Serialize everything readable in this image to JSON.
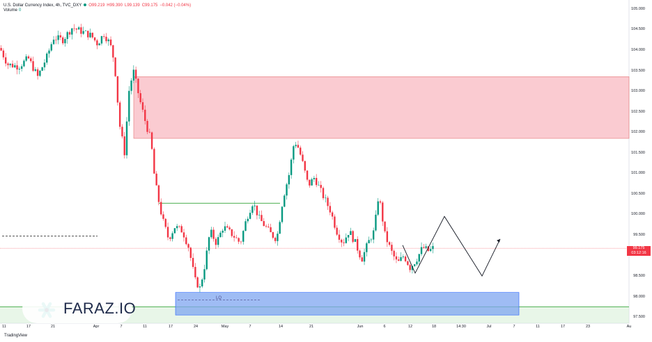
{
  "header": {
    "symbol": "U.S. Dollar Currency Index, 4h, TVC_DXY",
    "open": "O99.219",
    "high": "H99.390",
    "low": "L99.139",
    "close": "C99.175",
    "change": "−0.042 (−0.04%)",
    "volume_label": "Volume",
    "volume_value": "0"
  },
  "price_tag": {
    "price": "99.175",
    "timer": "03:12:16"
  },
  "watermark": {
    "brand": "FARAZ.IO"
  },
  "footer": {
    "tradingview": "TradingView"
  },
  "annotations": {
    "lq": "LQ"
  },
  "colors": {
    "up": "#089981",
    "down": "#f23645",
    "supply_zone": "#f7a8b3",
    "demand_zone": "#7fa6f0",
    "green_band": "#d6efd6"
  },
  "chart_data": {
    "type": "candlestick",
    "title": "U.S. Dollar Currency Index, 4h, TVC_DXY",
    "ylim": [
      97.35,
      105.15
    ],
    "y_ticks": [
      "105.000",
      "104.500",
      "104.000",
      "103.500",
      "103.000",
      "102.500",
      "102.000",
      "101.500",
      "101.000",
      "100.500",
      "100.000",
      "99.500",
      "99.000",
      "98.500",
      "98.000",
      "97.500"
    ],
    "x_ticks": [
      "11",
      "17",
      "21",
      "Apr",
      "7",
      "11",
      "17",
      "24",
      "May",
      "7",
      "14",
      "21",
      "Jun",
      "6",
      "12",
      "18",
      "14:30",
      "Jul",
      "7",
      "11",
      "17",
      "23",
      "Au"
    ],
    "grid": false,
    "close_path": [
      [
        0,
        104.05
      ],
      [
        0.012,
        103.65
      ],
      [
        0.03,
        103.6
      ],
      [
        0.045,
        103.8
      ],
      [
        0.06,
        103.35
      ],
      [
        0.075,
        103.85
      ],
      [
        0.085,
        104.3
      ],
      [
        0.1,
        104.25
      ],
      [
        0.115,
        104.55
      ],
      [
        0.13,
        104.45
      ],
      [
        0.145,
        104.35
      ],
      [
        0.155,
        104.15
      ],
      [
        0.165,
        104.4
      ],
      [
        0.175,
        104.15
      ],
      [
        0.182,
        103.7
      ],
      [
        0.19,
        102.2
      ],
      [
        0.198,
        101.5
      ],
      [
        0.205,
        103.0
      ],
      [
        0.212,
        103.5
      ],
      [
        0.222,
        102.8
      ],
      [
        0.232,
        102.2
      ],
      [
        0.24,
        101.8
      ],
      [
        0.245,
        101.0
      ],
      [
        0.25,
        100.5
      ],
      [
        0.258,
        99.9
      ],
      [
        0.268,
        99.4
      ],
      [
        0.278,
        99.7
      ],
      [
        0.29,
        99.6
      ],
      [
        0.3,
        99.2
      ],
      [
        0.31,
        98.4
      ],
      [
        0.318,
        98.2
      ],
      [
        0.326,
        98.8
      ],
      [
        0.334,
        99.6
      ],
      [
        0.344,
        99.3
      ],
      [
        0.355,
        99.7
      ],
      [
        0.37,
        99.5
      ],
      [
        0.382,
        99.3
      ],
      [
        0.392,
        99.9
      ],
      [
        0.402,
        100.3
      ],
      [
        0.412,
        99.9
      ],
      [
        0.422,
        99.7
      ],
      [
        0.432,
        99.5
      ],
      [
        0.44,
        99.4
      ],
      [
        0.45,
        100.4
      ],
      [
        0.46,
        101.0
      ],
      [
        0.468,
        101.8
      ],
      [
        0.475,
        101.6
      ],
      [
        0.482,
        101.2
      ],
      [
        0.49,
        100.7
      ],
      [
        0.5,
        100.9
      ],
      [
        0.512,
        100.5
      ],
      [
        0.525,
        100.1
      ],
      [
        0.535,
        99.6
      ],
      [
        0.545,
        99.3
      ],
      [
        0.555,
        99.6
      ],
      [
        0.565,
        99.3
      ],
      [
        0.575,
        98.9
      ],
      [
        0.585,
        99.3
      ],
      [
        0.595,
        99.6
      ],
      [
        0.602,
        100.5
      ],
      [
        0.612,
        99.5
      ],
      [
        0.622,
        99.1
      ],
      [
        0.632,
        98.8
      ],
      [
        0.642,
        99.0
      ],
      [
        0.652,
        98.7
      ],
      [
        0.662,
        98.9
      ],
      [
        0.672,
        99.2
      ],
      [
        0.682,
        99.1
      ],
      [
        0.69,
        99.2
      ]
    ],
    "projection": [
      [
        99.1,
        98.57
      ],
      [
        99.95,
        98.5
      ],
      [
        98.5,
        99.4
      ]
    ],
    "zones": {
      "supply": {
        "from": 101.85,
        "to": 103.35
      },
      "demand": {
        "from": 97.55,
        "to": 98.1
      },
      "green_band": {
        "from": 97.35,
        "to": 97.75
      }
    },
    "levels": {
      "current_price": 99.175,
      "lq": 97.92,
      "resistance": 100.27,
      "dashed_left": 99.47
    }
  }
}
